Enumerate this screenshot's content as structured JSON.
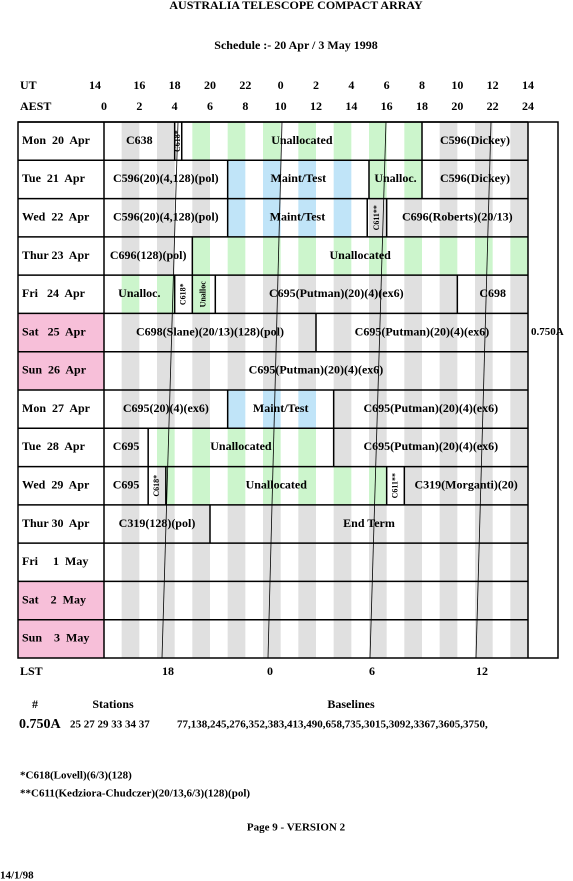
{
  "header": {
    "title": "AUSTRALIA TELESCOPE COMPACT ARRAY",
    "subtitle": "Schedule :- 20 Apr / 3 May 1998"
  },
  "time_axes": {
    "ut_label": "UT",
    "ut_ticks": [
      "14",
      "16",
      "18",
      "20",
      "22",
      "0",
      "2",
      "4",
      "6",
      "8",
      "10",
      "12",
      "14"
    ],
    "aest_label": "AEST",
    "aest_ticks": [
      "0",
      "2",
      "4",
      "6",
      "8",
      "10",
      "12",
      "14",
      "16",
      "18",
      "20",
      "22",
      "24"
    ],
    "lst_label": "LST",
    "lst_ticks": [
      "18",
      "0",
      "6",
      "12"
    ]
  },
  "schedule": {
    "configuration": "0.750A",
    "rows": [
      {
        "day": "Mon  20  Apr",
        "blocks": [
          "C638",
          "C618*",
          "Unallocated",
          "C596(Dickey)"
        ]
      },
      {
        "day": "Tue  21  Apr",
        "blocks": [
          "C596(20)(4,128)(pol)",
          "Maint/Test",
          "Unalloc.",
          "C596(Dickey)"
        ]
      },
      {
        "day": "Wed  22  Apr",
        "blocks": [
          "C596(20)(4,128)(pol)",
          "Maint/Test",
          "C611**",
          "C696(Roberts)(20/13)"
        ]
      },
      {
        "day": "Thur 23  Apr",
        "blocks": [
          "C696(128)(pol)",
          "Unallocated"
        ]
      },
      {
        "day": "Fri   24  Apr",
        "blocks": [
          "Unalloc.",
          "C618*",
          "Unalloc",
          "C695(Putman)(20)(4)(ex6)",
          "C698"
        ]
      },
      {
        "day": "Sat   25  Apr",
        "blocks": [
          "C698(Slane)(20/13)(128)(pol)",
          "C695(Putman)(20)(4)(ex6)"
        ]
      },
      {
        "day": "Sun  26  Apr",
        "blocks": [
          "C695(Putman)(20)(4)(ex6)"
        ]
      },
      {
        "day": "Mon  27  Apr",
        "blocks": [
          "C695(20)(4)(ex6)",
          "Maint/Test",
          "C695(Putman)(20)(4)(ex6)"
        ]
      },
      {
        "day": "Tue  28  Apr",
        "blocks": [
          "C695",
          "Unallocated",
          "C695(Putman)(20)(4)(ex6)"
        ]
      },
      {
        "day": "Wed  29  Apr",
        "blocks": [
          "C695",
          "C618*",
          "Unallocated",
          "C611**",
          "C319(Morganti)(20)"
        ]
      },
      {
        "day": "Thur 30  Apr",
        "blocks": [
          "C319(128)(pol)",
          "End Term"
        ]
      },
      {
        "day": "Fri     1  May",
        "blocks": []
      },
      {
        "day": "Sat    2  May",
        "blocks": []
      },
      {
        "day": "Sun    3  May",
        "blocks": []
      }
    ]
  },
  "configurations": {
    "headers": [
      "#",
      "Stations",
      "Baselines"
    ],
    "rows": [
      [
        "0.750A",
        "25 27 29 33 34 37",
        "77,138,245,276,352,383,413,490,658,735,3015,3092,3367,3605,3750,"
      ]
    ]
  },
  "footnotes": [
    "*C618(Lovell)(6/3)(128)",
    "**C611(Kedziora-Chudczer)(20/13,6/3)(128)(pol)"
  ],
  "footer": {
    "page": "Page 9 - VERSION 2",
    "date": "14/1/98"
  }
}
